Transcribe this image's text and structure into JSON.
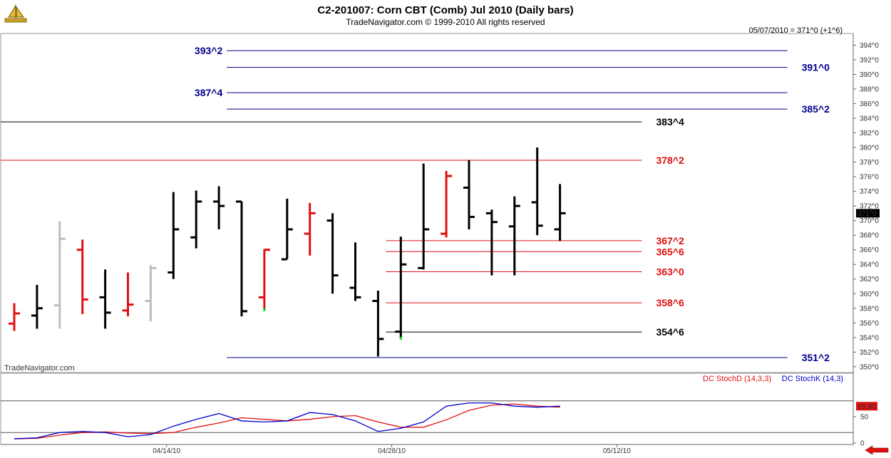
{
  "header": {
    "title": "C2-201007:  Corn CBT (Comb) Jul 2010  (Daily bars)",
    "subtitle": "TradeNavigator.com © 1999-2010 All rights reserved",
    "last_quote": "05/07/2010 = 371^0 (+1^6)",
    "watermark": "TradeNavigator.com"
  },
  "icons": {
    "logo": "sailboat-logo-icon",
    "scroll": "scroll-left-arrow-icon"
  },
  "colors": {
    "up": "#000000",
    "down": "#e01010",
    "neutral": "#bdbdbd",
    "blue_line": "#00008b",
    "red_line": "#e01010",
    "black_line": "#000000",
    "stochD": "#e01010",
    "stochK": "#0000cc"
  },
  "chart_data": [
    {
      "type": "ohlc",
      "title": "C2-201007:  Corn CBT (Comb) Jul 2010  (Daily bars)",
      "price_format": "cents^eighths",
      "ylim": [
        349.5,
        395.5
      ],
      "y_ticks": [
        "350^0",
        "352^0",
        "354^0",
        "356^0",
        "358^0",
        "360^0",
        "362^0",
        "364^0",
        "366^0",
        "368^0",
        "370^0",
        "372^0",
        "374^0",
        "376^0",
        "378^0",
        "380^0",
        "382^0",
        "384^0",
        "386^0",
        "388^0",
        "390^0",
        "392^0",
        "394^0"
      ],
      "y_tick_values": [
        350,
        352,
        354,
        356,
        358,
        360,
        362,
        364,
        366,
        368,
        370,
        372,
        374,
        376,
        378,
        380,
        382,
        384,
        386,
        388,
        390,
        392,
        394
      ],
      "current_price_label": "371^0",
      "current_price": 371.0,
      "x_labels": [
        {
          "bar": 6.7,
          "label": "04/14/10"
        },
        {
          "bar": 16.6,
          "label": "04/28/10"
        },
        {
          "bar": 26.5,
          "label": "05/12/10"
        }
      ],
      "bars": [
        {
          "o": 355.9,
          "h": 358.7,
          "l": 354.9,
          "c": 357.3,
          "color": "red",
          "low_mark": false
        },
        {
          "o": 357.0,
          "h": 361.2,
          "l": 355.2,
          "c": 358.0,
          "color": "black",
          "low_mark": false
        },
        {
          "o": 358.4,
          "h": 369.9,
          "l": 355.2,
          "c": 367.5,
          "color": "gray",
          "low_mark": false
        },
        {
          "o": 366.0,
          "h": 367.4,
          "l": 357.2,
          "c": 359.2,
          "color": "red",
          "low_mark": false
        },
        {
          "o": 359.5,
          "h": 363.3,
          "l": 355.2,
          "c": 357.4,
          "color": "black",
          "low_mark": false
        },
        {
          "o": 357.7,
          "h": 362.9,
          "l": 356.9,
          "c": 358.5,
          "color": "red",
          "low_mark": false
        },
        {
          "o": 359.0,
          "h": 363.9,
          "l": 356.2,
          "c": 363.5,
          "color": "gray",
          "low_mark": false
        },
        {
          "o": 362.9,
          "h": 373.9,
          "l": 362.0,
          "c": 368.8,
          "color": "black",
          "low_mark": false
        },
        {
          "o": 367.7,
          "h": 374.1,
          "l": 366.2,
          "c": 372.6,
          "color": "black",
          "low_mark": false
        },
        {
          "o": 372.6,
          "h": 374.7,
          "l": 368.8,
          "c": 372.0,
          "color": "black",
          "low_mark": false
        },
        {
          "o": 372.6,
          "h": 372.6,
          "l": 356.9,
          "c": 357.6,
          "color": "black",
          "low_mark": false
        },
        {
          "o": 359.5,
          "h": 366.1,
          "l": 357.9,
          "c": 366.0,
          "color": "red",
          "low_mark": true
        },
        {
          "o": 364.7,
          "h": 373.0,
          "l": 364.7,
          "c": 368.8,
          "color": "black",
          "low_mark": false
        },
        {
          "o": 368.2,
          "h": 372.4,
          "l": 365.2,
          "c": 371.0,
          "color": "red",
          "low_mark": false
        },
        {
          "o": 370.0,
          "h": 371.0,
          "l": 360.0,
          "c": 362.5,
          "color": "black",
          "low_mark": false
        },
        {
          "o": 360.8,
          "h": 367.0,
          "l": 359.0,
          "c": 359.5,
          "color": "black",
          "low_mark": false
        },
        {
          "o": 359.0,
          "h": 360.4,
          "l": 351.4,
          "c": 353.8,
          "color": "black",
          "low_mark": false
        },
        {
          "o": 354.8,
          "h": 367.8,
          "l": 354.0,
          "c": 364.0,
          "color": "black",
          "low_mark": true
        },
        {
          "o": 363.5,
          "h": 377.8,
          "l": 363.3,
          "c": 368.8,
          "color": "black",
          "low_mark": false
        },
        {
          "o": 368.2,
          "h": 376.8,
          "l": 367.7,
          "c": 376.1,
          "color": "red",
          "low_mark": false
        },
        {
          "o": 374.5,
          "h": 378.3,
          "l": 368.8,
          "c": 370.5,
          "color": "black",
          "low_mark": false
        },
        {
          "o": 371.0,
          "h": 371.5,
          "l": 362.5,
          "c": 369.8,
          "color": "black",
          "low_mark": false
        },
        {
          "o": 369.2,
          "h": 373.3,
          "l": 362.5,
          "c": 372.0,
          "color": "black",
          "low_mark": false
        },
        {
          "o": 372.5,
          "h": 380.0,
          "l": 368.0,
          "c": 369.3,
          "color": "black",
          "low_mark": false
        },
        {
          "o": 368.8,
          "h": 375.0,
          "l": 367.2,
          "c": 371.0,
          "color": "black",
          "low_mark": false
        }
      ],
      "levels": [
        {
          "label": "393^2",
          "price": 393.25,
          "color": "blue",
          "x0bar": 9.35,
          "x1bar": 34.0,
          "label_side": "left"
        },
        {
          "label": "391^0",
          "price": 390.95,
          "color": "blue",
          "x0bar": 9.35,
          "x1bar": 34.0,
          "label_side": "right"
        },
        {
          "label": "387^4",
          "price": 387.5,
          "color": "blue",
          "x0bar": 9.35,
          "x1bar": 34.0,
          "label_side": "left"
        },
        {
          "label": "385^2",
          "price": 385.25,
          "color": "blue",
          "x0bar": 9.35,
          "x1bar": 34.0,
          "label_side": "right"
        },
        {
          "label": "383^4",
          "price": 383.5,
          "color": "black",
          "x0bar": -0.7,
          "x1bar": 27.6,
          "label_side": "right"
        },
        {
          "label": "378^2",
          "price": 378.25,
          "color": "red",
          "x0bar": -0.7,
          "x1bar": 27.6,
          "label_side": "right"
        },
        {
          "label": "367^2",
          "price": 367.25,
          "color": "red",
          "x0bar": 16.35,
          "x1bar": 27.6,
          "label_side": "right"
        },
        {
          "label": "365^6",
          "price": 365.75,
          "color": "red",
          "x0bar": 16.35,
          "x1bar": 27.6,
          "label_side": "right"
        },
        {
          "label": "363^0",
          "price": 363.0,
          "color": "red",
          "x0bar": 16.35,
          "x1bar": 27.6,
          "label_side": "right"
        },
        {
          "label": "358^6",
          "price": 358.75,
          "color": "red",
          "x0bar": 16.35,
          "x1bar": 27.6,
          "label_side": "right"
        },
        {
          "label": "354^6",
          "price": 354.75,
          "color": "black",
          "x0bar": 16.35,
          "x1bar": 27.6,
          "label_side": "right"
        },
        {
          "label": "351^2",
          "price": 351.25,
          "color": "blue",
          "x0bar": 9.35,
          "x1bar": 34.0,
          "label_side": "right"
        }
      ]
    },
    {
      "type": "line",
      "title": "",
      "legend": [
        "DC StochD (14,3,3)",
        "DC StochK (14,3)"
      ],
      "ylim": [
        0,
        100
      ],
      "y_ticks": [
        "0",
        "50"
      ],
      "y_tick_values": [
        0,
        50
      ],
      "current_value_label": "69.90",
      "current_value": 69.9,
      "x": [
        0,
        1,
        2,
        3,
        4,
        5,
        6,
        7,
        8,
        9,
        10,
        11,
        12,
        13,
        14,
        15,
        16,
        17,
        18,
        19,
        20,
        21,
        22,
        23,
        24
      ],
      "series": [
        {
          "name": "DC StochD (14,3,3)",
          "values": [
            8,
            9,
            15,
            20,
            21,
            19,
            18,
            20,
            30,
            38,
            48,
            45,
            42,
            45,
            50,
            52,
            40,
            30,
            30,
            44,
            62,
            72,
            74,
            70,
            68
          ]
        },
        {
          "name": "DC StochK (14,3)",
          "values": [
            8,
            10,
            20,
            22,
            20,
            12,
            16,
            32,
            45,
            56,
            42,
            40,
            42,
            58,
            54,
            42,
            22,
            28,
            40,
            70,
            76,
            76,
            70,
            68,
            70
          ]
        }
      ]
    }
  ]
}
